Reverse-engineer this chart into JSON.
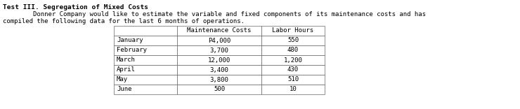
{
  "title": "Test III. Segregation of Mixed Costs",
  "line1": "        Donner Company would like to estimate the variable and fixed components of its maintenance costs and has",
  "line2": "compiled the following data for the last 6 months of operations.",
  "col_headers": [
    "",
    "Maintenance Costs",
    "Labor Hours"
  ],
  "rows": [
    [
      "January",
      "P4,000",
      "550"
    ],
    [
      "February",
      "3,700",
      "480"
    ],
    [
      "March",
      "12,000",
      "1,200"
    ],
    [
      "April",
      "3,400",
      "430"
    ],
    [
      "May",
      "3,800",
      "510"
    ],
    [
      "June",
      "500",
      "10"
    ]
  ],
  "bg_color": "#ffffff",
  "text_color": "#000000",
  "title_fontsize": 6.8,
  "body_fontsize": 6.5,
  "table_fontsize": 6.5,
  "font_family": "monospace"
}
